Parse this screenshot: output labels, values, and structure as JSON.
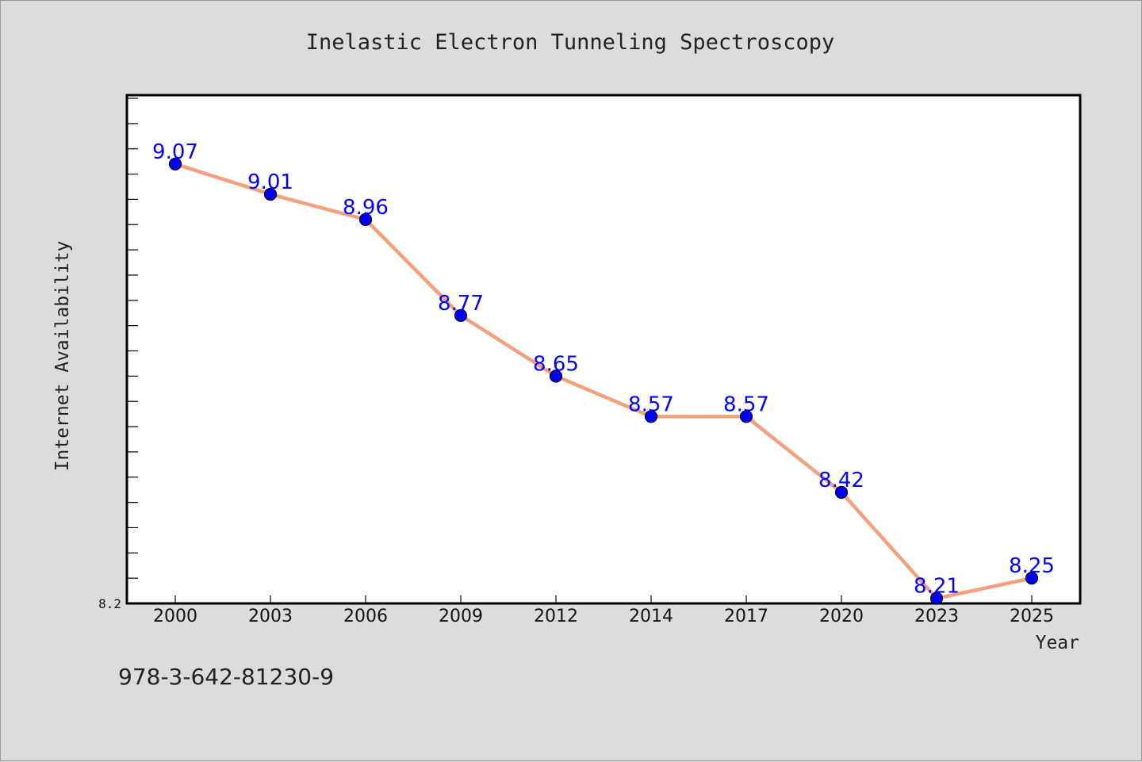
{
  "footer_code": "978-3-642-81230-9",
  "chart_data": {
    "type": "line",
    "title": "Inelastic Electron Tunneling Spectroscopy",
    "xlabel": "Year",
    "ylabel": "Internet Availability",
    "categories": [
      "2000",
      "2003",
      "2006",
      "2009",
      "2012",
      "2014",
      "2017",
      "2020",
      "2023",
      "2025"
    ],
    "series": [
      {
        "values": [
          9.07,
          9.01,
          8.96,
          8.77,
          8.65,
          8.57,
          8.57,
          8.42,
          8.21,
          8.25
        ],
        "labels": [
          "9.07",
          "9.01",
          "8.96",
          "8.77",
          "8.65",
          "8.57",
          "8.57",
          "8.42",
          "8.21",
          "8.25"
        ],
        "line_color": "#f4a07c",
        "marker_color": "#0000ff"
      }
    ],
    "ylim": [
      8.2,
      9.2
    ],
    "ytick_label": "8.2",
    "grid": false,
    "plot_background": "#ffffff",
    "page_background": "#dcdcdc"
  }
}
